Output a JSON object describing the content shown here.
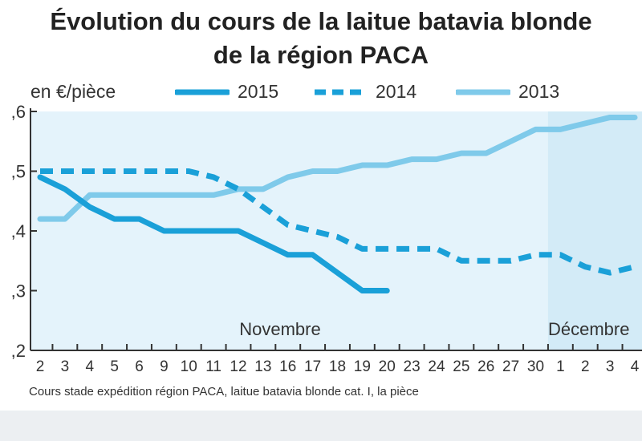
{
  "chart_data": {
    "type": "line",
    "title": "Évolution du cours de la laitue batavia blonde de la région PACA",
    "title_lines": [
      "Évolution du cours de la laitue batavia blonde",
      "de la région PACA"
    ],
    "unit_label": "en €/pièce",
    "source_note": "Cours stade expédition région PACA, laitue batavia blonde cat. I, la pièce",
    "categories": [
      "2",
      "3",
      "4",
      "5",
      "6",
      "9",
      "10",
      "11",
      "12",
      "13",
      "16",
      "17",
      "18",
      "19",
      "20",
      "23",
      "24",
      "25",
      "26",
      "27",
      "30",
      "1",
      "2",
      "3",
      "4"
    ],
    "month_labels": [
      {
        "label": "Novembre",
        "start_index": 0
      },
      {
        "label": "Décembre",
        "start_index": 21
      }
    ],
    "ylim": [
      0.2,
      0.6
    ],
    "yticks": [
      ",2",
      ",3",
      ",4",
      ",5",
      ",6"
    ],
    "ytick_values": [
      0.2,
      0.3,
      0.4,
      0.5,
      0.6
    ],
    "grid": false,
    "legend_position": "top",
    "series": [
      {
        "name": "2015",
        "style": "solid",
        "color": "#1aa0d8",
        "values": [
          0.49,
          0.47,
          0.44,
          0.42,
          0.42,
          0.4,
          0.4,
          0.4,
          0.4,
          0.38,
          0.36,
          0.36,
          0.33,
          0.3,
          0.3,
          null,
          null,
          null,
          null,
          null,
          null,
          null,
          null,
          null,
          null
        ]
      },
      {
        "name": "2014",
        "style": "dashed",
        "color": "#1aa0d8",
        "values": [
          0.5,
          0.5,
          0.5,
          0.5,
          0.5,
          0.5,
          0.5,
          0.49,
          0.47,
          0.44,
          0.41,
          0.4,
          0.39,
          0.37,
          0.37,
          0.37,
          0.37,
          0.35,
          0.35,
          0.35,
          0.36,
          0.36,
          0.34,
          0.33,
          0.34
        ]
      },
      {
        "name": "2013",
        "style": "solid",
        "color": "#7fcaea",
        "values": [
          0.42,
          0.42,
          0.46,
          0.46,
          0.46,
          0.46,
          0.46,
          0.46,
          0.47,
          0.47,
          0.49,
          0.5,
          0.5,
          0.51,
          0.51,
          0.52,
          0.52,
          0.53,
          0.53,
          0.55,
          0.57,
          0.57,
          0.58,
          0.59,
          0.59
        ]
      }
    ]
  }
}
